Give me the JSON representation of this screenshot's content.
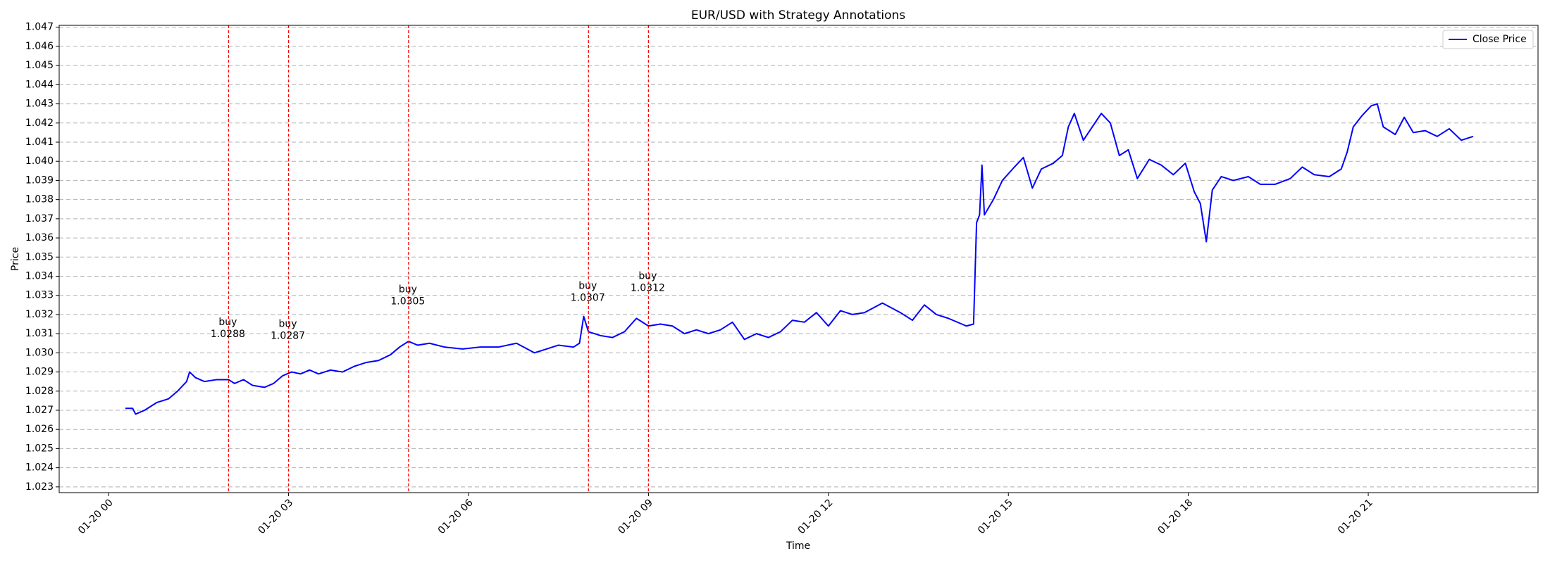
{
  "chart_data": {
    "type": "line",
    "title": "EUR/USD with Strategy Annotations",
    "x_label": "Time",
    "y_label": "Price",
    "x": [
      0.28,
      0.4,
      0.45,
      0.6,
      0.8,
      1.0,
      1.15,
      1.3,
      1.35,
      1.45,
      1.6,
      1.8,
      2.0,
      2.1,
      2.25,
      2.4,
      2.6,
      2.75,
      2.9,
      3.05,
      3.2,
      3.35,
      3.5,
      3.7,
      3.9,
      4.1,
      4.3,
      4.5,
      4.7,
      4.85,
      5.0,
      5.15,
      5.35,
      5.6,
      5.9,
      6.2,
      6.5,
      6.8,
      7.1,
      7.3,
      7.5,
      7.75,
      7.85,
      7.92,
      8.0,
      8.2,
      8.4,
      8.6,
      8.8,
      9.0,
      9.2,
      9.4,
      9.6,
      9.8,
      10.0,
      10.2,
      10.4,
      10.6,
      10.8,
      11.0,
      11.2,
      11.4,
      11.6,
      11.8,
      12.0,
      12.2,
      12.4,
      12.6,
      12.9,
      13.2,
      13.4,
      13.6,
      13.8,
      14.0,
      14.3,
      14.42,
      14.47,
      14.52,
      14.56,
      14.6,
      14.75,
      14.9,
      15.1,
      15.25,
      15.4,
      15.55,
      15.75,
      15.9,
      16.0,
      16.1,
      16.25,
      16.4,
      16.55,
      16.7,
      16.85,
      17.0,
      17.15,
      17.35,
      17.55,
      17.75,
      17.95,
      18.1,
      18.2,
      18.3,
      18.4,
      18.55,
      18.75,
      19.0,
      19.2,
      19.45,
      19.7,
      19.9,
      20.1,
      20.35,
      20.55,
      20.65,
      20.75,
      20.9,
      21.05,
      21.15,
      21.25,
      21.45,
      21.6,
      21.75,
      21.95,
      22.15,
      22.35,
      22.55,
      22.75
    ],
    "series": [
      {
        "name": "Close Price",
        "color": "#0000ff",
        "values": [
          1.0271,
          1.0271,
          1.0268,
          1.027,
          1.0274,
          1.0276,
          1.028,
          1.0285,
          1.029,
          1.0287,
          1.0285,
          1.0286,
          1.0286,
          1.0284,
          1.0286,
          1.0283,
          1.0282,
          1.0284,
          1.0288,
          1.029,
          1.0289,
          1.0291,
          1.0289,
          1.0291,
          1.029,
          1.0293,
          1.0295,
          1.0296,
          1.0299,
          1.0303,
          1.0306,
          1.0304,
          1.0305,
          1.0303,
          1.0302,
          1.0303,
          1.0303,
          1.0305,
          1.03,
          1.0302,
          1.0304,
          1.0303,
          1.0305,
          1.0319,
          1.0311,
          1.0309,
          1.0308,
          1.0311,
          1.0318,
          1.0314,
          1.0315,
          1.0314,
          1.031,
          1.0312,
          1.031,
          1.0312,
          1.0316,
          1.0307,
          1.031,
          1.0308,
          1.0311,
          1.0317,
          1.0316,
          1.0321,
          1.0314,
          1.0322,
          1.032,
          1.0321,
          1.0326,
          1.0321,
          1.0317,
          1.0325,
          1.032,
          1.0318,
          1.0314,
          1.0315,
          1.0368,
          1.0372,
          1.0398,
          1.0372,
          1.038,
          1.039,
          1.0397,
          1.0402,
          1.0386,
          1.0396,
          1.0399,
          1.0403,
          1.0418,
          1.0425,
          1.0411,
          1.0418,
          1.0425,
          1.042,
          1.0403,
          1.0406,
          1.0391,
          1.0401,
          1.0398,
          1.0393,
          1.0399,
          1.0384,
          1.0378,
          1.0358,
          1.0385,
          1.0392,
          1.039,
          1.0392,
          1.0388,
          1.0388,
          1.0391,
          1.0397,
          1.0393,
          1.0392,
          1.0396,
          1.0405,
          1.0418,
          1.0424,
          1.0429,
          1.043,
          1.0418,
          1.0414,
          1.0423,
          1.0415,
          1.0416,
          1.0413,
          1.0417,
          1.0411,
          1.0413
        ]
      }
    ],
    "xlim": [
      -0.824,
      23.83
    ],
    "xticks": [
      {
        "value": 0,
        "label": "01-20 00"
      },
      {
        "value": 3,
        "label": "01-20 03"
      },
      {
        "value": 6,
        "label": "01-20 06"
      },
      {
        "value": 9,
        "label": "01-20 09"
      },
      {
        "value": 12,
        "label": "01-20 12"
      },
      {
        "value": 15,
        "label": "01-20 15"
      },
      {
        "value": 18,
        "label": "01-20 18"
      },
      {
        "value": 21,
        "label": "01-20 21"
      }
    ],
    "ylim": [
      1.0227,
      1.0471
    ],
    "yticks": [
      1.023,
      1.024,
      1.025,
      1.026,
      1.027,
      1.028,
      1.029,
      {
        "value": 1.03,
        "label": "1.030"
      },
      1.031,
      1.032,
      1.033,
      1.034,
      1.035,
      1.036,
      1.037,
      1.038,
      1.039,
      {
        "value": 1.04,
        "label": "1.040"
      },
      1.041,
      1.042,
      1.043,
      1.044,
      1.045,
      1.046,
      1.047
    ],
    "grid": true,
    "legend": "upper right",
    "annotations": [
      {
        "x": 2,
        "label": "buy",
        "value": 1.0288,
        "color": "#ff0000"
      },
      {
        "x": 3,
        "label": "buy",
        "value": 1.0287,
        "color": "#ff0000"
      },
      {
        "x": 5,
        "label": "buy",
        "value": 1.0305,
        "color": "#ff0000"
      },
      {
        "x": 8,
        "label": "buy",
        "value": 1.0307,
        "color": "#ff0000"
      },
      {
        "x": 9,
        "label": "buy",
        "value": 1.0312,
        "color": "#ff0000"
      }
    ]
  }
}
